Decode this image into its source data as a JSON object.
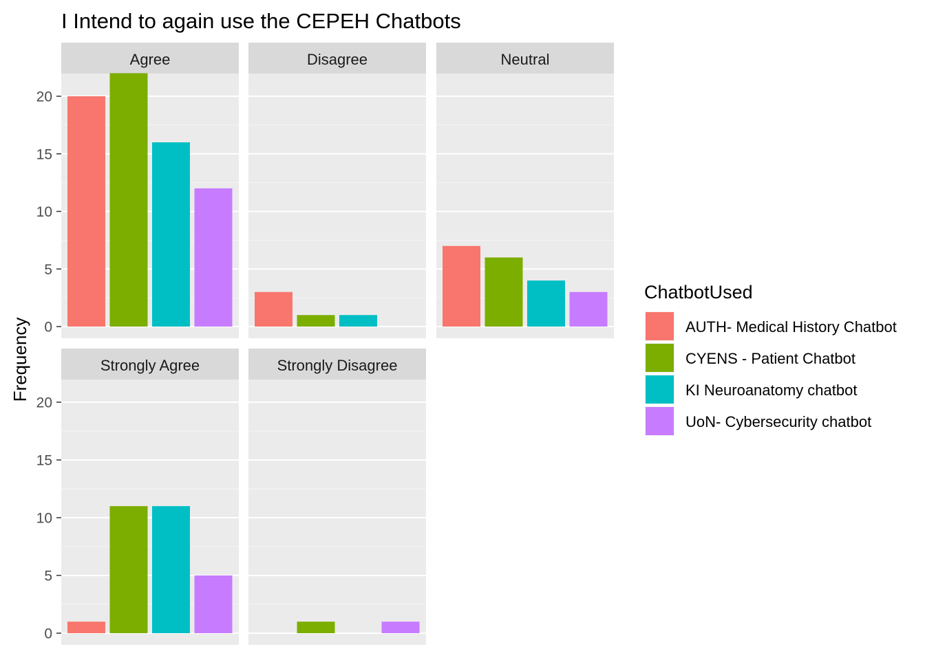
{
  "chart_data": {
    "type": "bar",
    "title": "I Intend to again use the CEPEH Chatbots",
    "xlabel": "",
    "ylabel": "Frequency",
    "ylim": [
      0,
      24
    ],
    "yticks": [
      0,
      5,
      10,
      15,
      20
    ],
    "grid": true,
    "legend": {
      "title": "ChatbotUsed",
      "position": "right"
    },
    "series": [
      {
        "name": "AUTH- Medical History Chatbot",
        "color": "#F8766D"
      },
      {
        "name": "CYENS - Patient Chatbot",
        "color": "#7CAE00"
      },
      {
        "name": "KI Neuroanatomy chatbot",
        "color": "#00BFC4"
      },
      {
        "name": "UoN- Cybersecurity chatbot",
        "color": "#C77CFF"
      }
    ],
    "panels": [
      {
        "label": "Agree",
        "values": [
          20,
          22,
          16,
          12
        ]
      },
      {
        "label": "Disagree",
        "values": [
          3,
          1,
          1,
          null
        ]
      },
      {
        "label": "Neutral",
        "values": [
          7,
          6,
          4,
          3
        ]
      },
      {
        "label": "Strongly Agree",
        "values": [
          1,
          11,
          11,
          5
        ]
      },
      {
        "label": "Strongly Disagree",
        "values": [
          null,
          1,
          null,
          1
        ]
      }
    ]
  }
}
